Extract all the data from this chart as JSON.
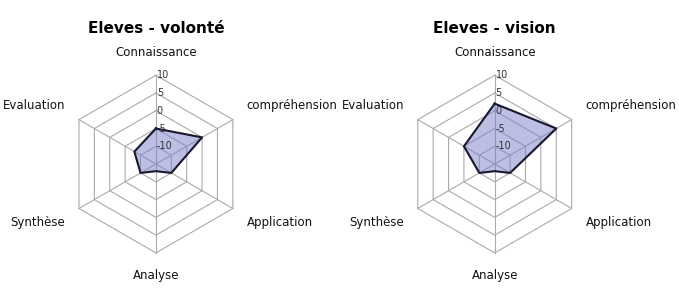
{
  "charts": [
    {
      "title": "Eleves - volonté",
      "categories": [
        "Connaissance",
        "compréhension",
        "Application",
        "Analyse",
        "Synthèse",
        "Evaluation"
      ],
      "values": [
        -5,
        0,
        -10,
        -13,
        -10,
        -8
      ]
    },
    {
      "title": "Eleves - vision",
      "categories": [
        "Connaissance",
        "compréhension",
        "Application",
        "Analyse",
        "Synthèse",
        "Evaluation"
      ],
      "values": [
        2,
        5,
        -10,
        -13,
        -10,
        -5
      ]
    }
  ],
  "r_min": -15,
  "r_max": 10,
  "r_ticks": [
    -10,
    -5,
    0,
    5,
    10
  ],
  "tick_labels": [
    "-10",
    "-5",
    "0",
    "5",
    "10"
  ],
  "fill_color": "#7b7ec8",
  "fill_alpha": 0.5,
  "edge_color": "#1a1a2e",
  "edge_width": 1.5,
  "grid_color": "#aaaaaa",
  "grid_linewidth": 0.8,
  "spoke_color": "#aaaaaa",
  "background_color": "#ffffff",
  "panel_border_color": "#888888",
  "title_fontsize": 11,
  "label_fontsize": 8.5,
  "tick_fontsize": 7
}
